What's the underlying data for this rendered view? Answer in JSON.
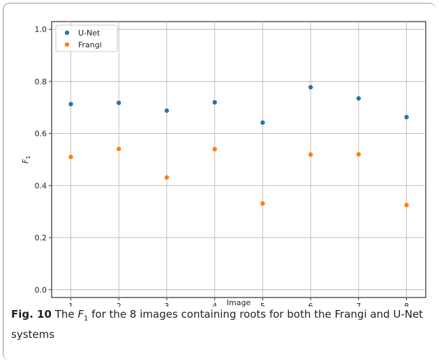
{
  "chart_data": {
    "type": "scatter",
    "x": [
      1,
      2,
      3,
      4,
      5,
      6,
      7,
      8
    ],
    "xticks": [
      "1",
      "2",
      "3",
      "4",
      "5",
      "6",
      "7",
      "8"
    ],
    "yticks": [
      "0.0",
      "0.2",
      "0.4",
      "0.6",
      "0.8",
      "1.0"
    ],
    "xlabel": "Image",
    "ylabel": "F",
    "ylabel_sub": "1",
    "xlim": [
      0.6,
      8.4
    ],
    "ylim": [
      -0.03,
      1.03
    ],
    "grid": true,
    "legend_position": "top-left",
    "series": [
      {
        "name": "U-Net",
        "color": "#1f77b4",
        "values": [
          0.713,
          0.718,
          0.688,
          0.72,
          0.642,
          0.778,
          0.735,
          0.663
        ]
      },
      {
        "name": "Frangi",
        "color": "#ff7f0e",
        "values": [
          0.51,
          0.541,
          0.431,
          0.54,
          0.331,
          0.519,
          0.52,
          0.325
        ]
      }
    ]
  },
  "caption": {
    "label": "Fig. 10",
    "text_before": "The ",
    "f": "F",
    "f_sub": "1",
    "text_after": " for the 8 images containing roots for both the Frangi and U-Net systems"
  }
}
